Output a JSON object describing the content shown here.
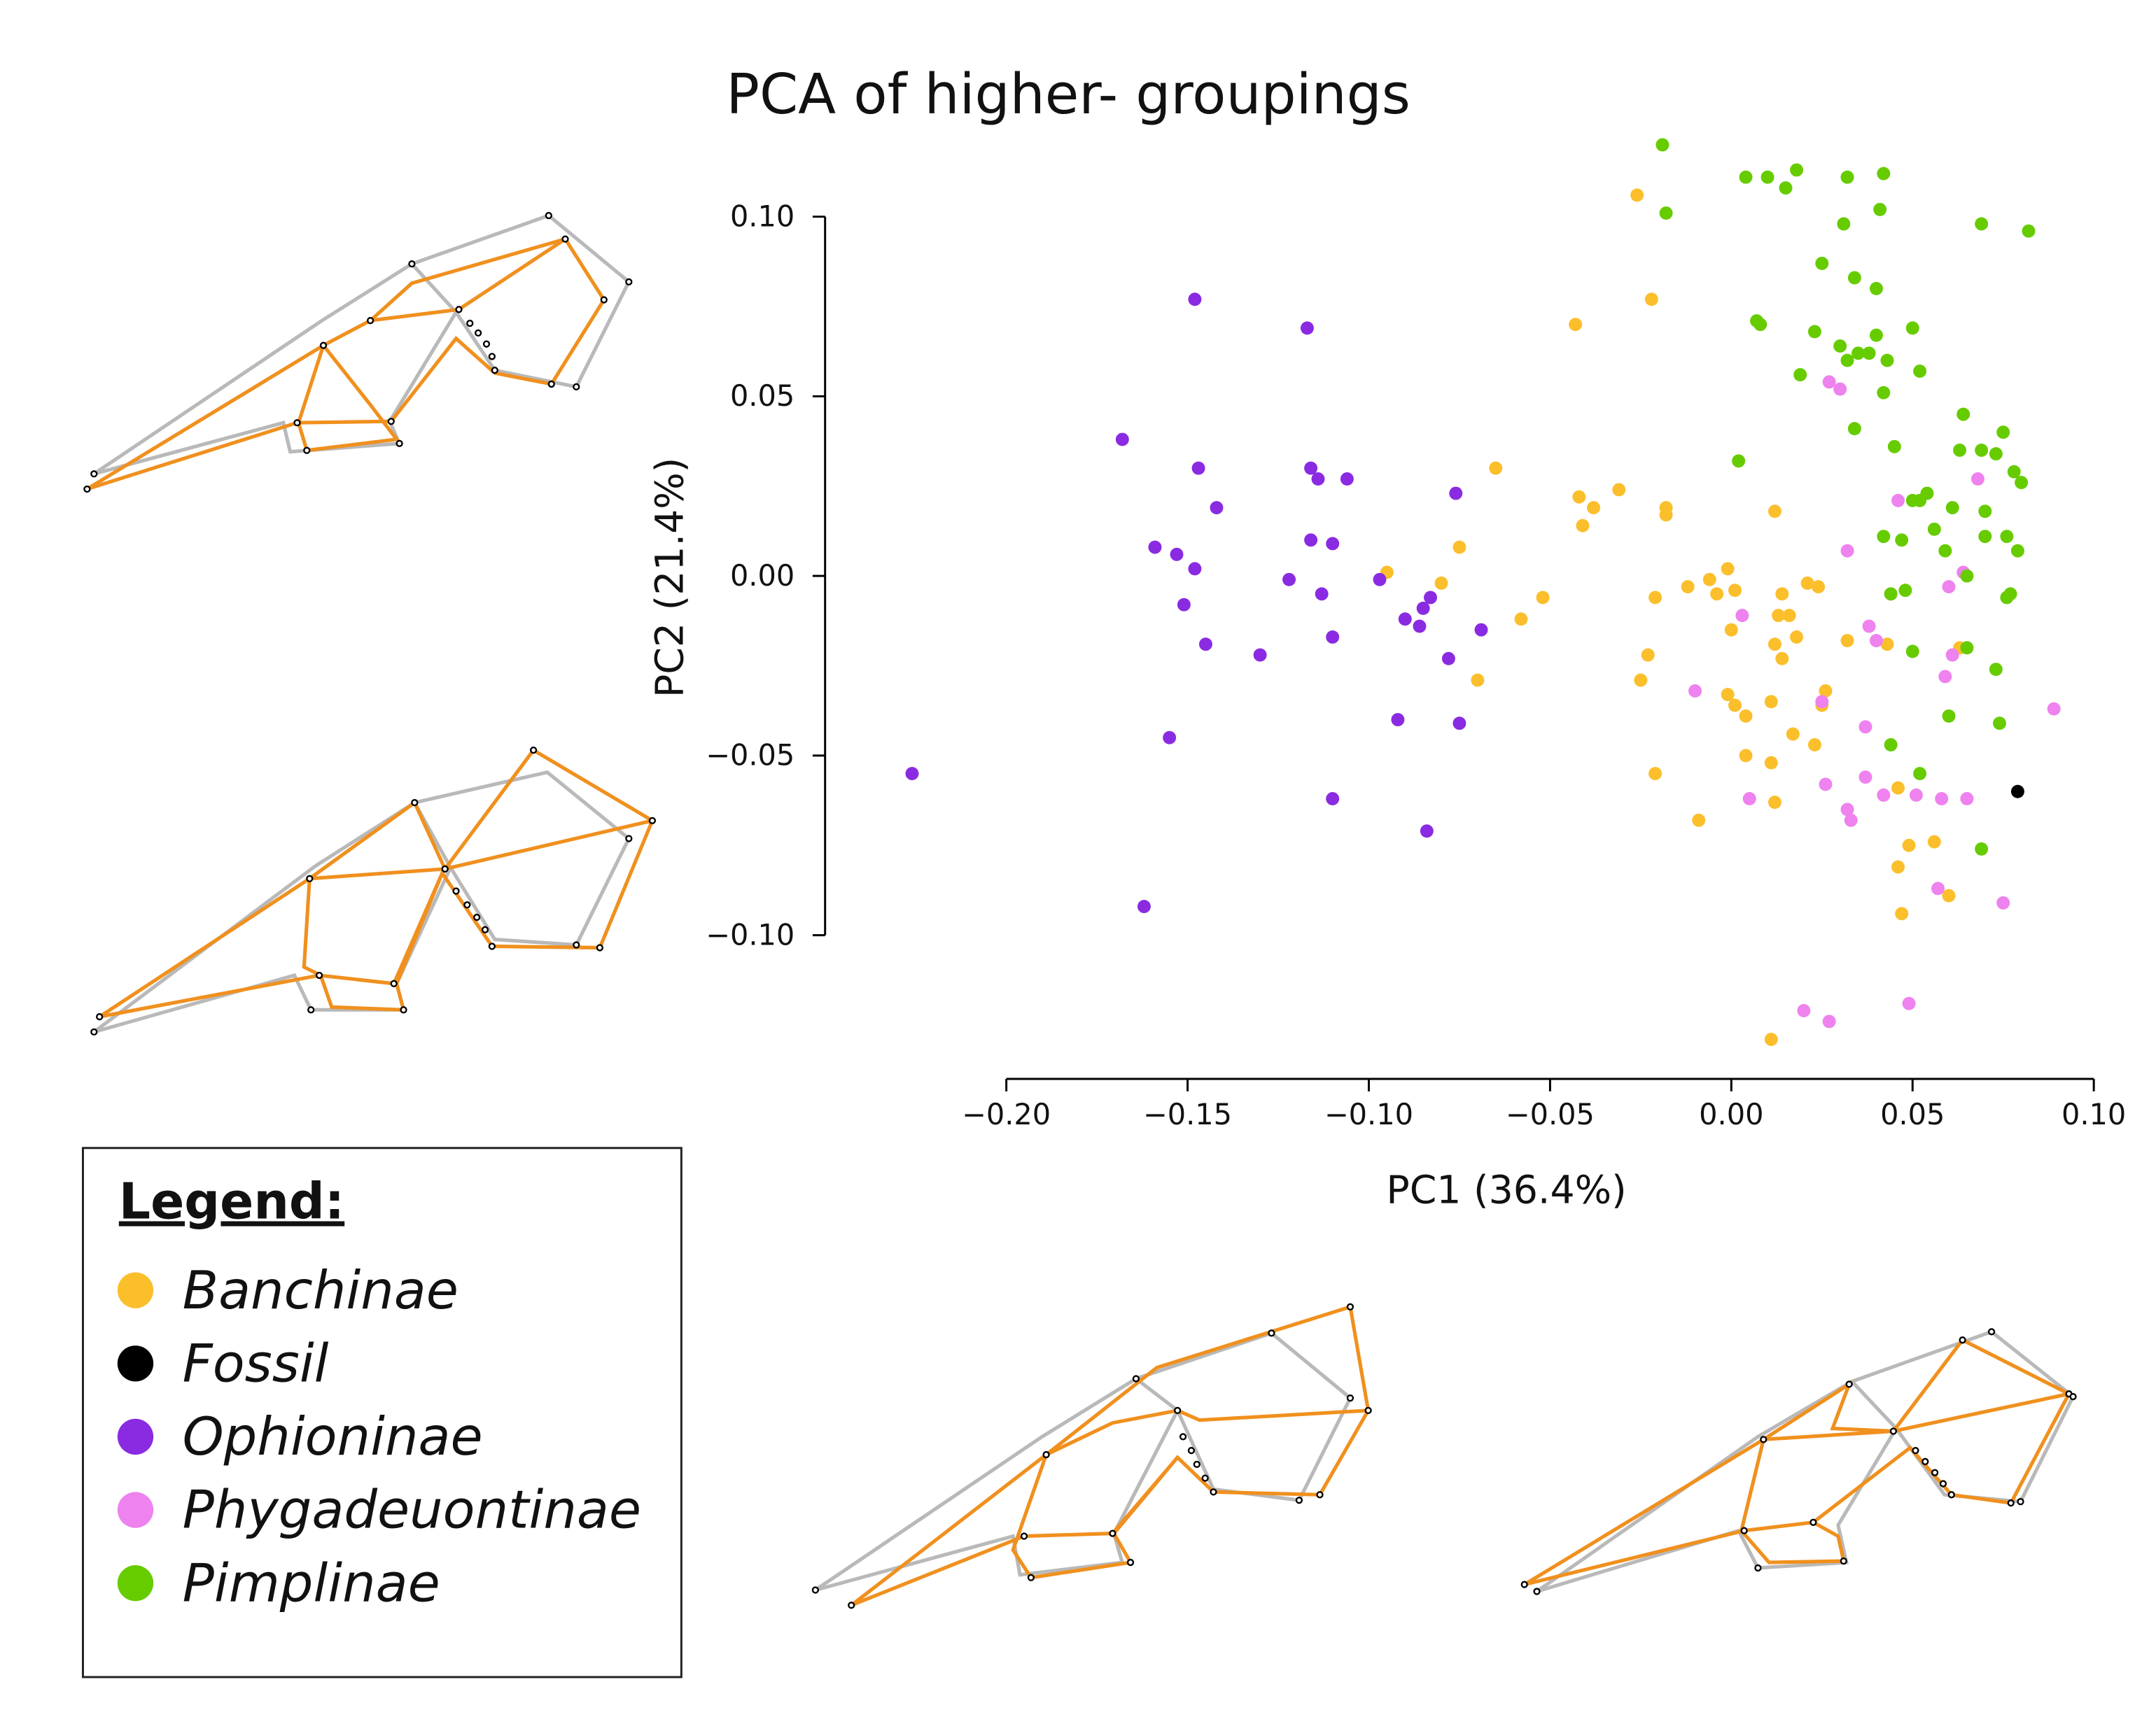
{
  "chart_data": {
    "type": "scatter",
    "title": "PCA of higher- groupings",
    "xlabel": "PC1 (36.4%)",
    "ylabel": "PC2 (21.4%)",
    "legend_title": "Legend:",
    "xlim": [
      -0.25,
      0.1
    ],
    "ylim": [
      -0.14,
      0.13
    ],
    "xticks": [
      {
        "value": -0.2,
        "label": "−0.20"
      },
      {
        "value": -0.15,
        "label": "−0.15"
      },
      {
        "value": -0.1,
        "label": "−0.10"
      },
      {
        "value": -0.05,
        "label": "−0.05"
      },
      {
        "value": 0,
        "label": "0.00"
      },
      {
        "value": 0.05,
        "label": "0.05"
      },
      {
        "value": 0.1,
        "label": "0.10"
      }
    ],
    "yticks": [
      {
        "value": -0.1,
        "label": "−0.10"
      },
      {
        "value": -0.05,
        "label": "−0.05"
      },
      {
        "value": 0,
        "label": "0.00"
      },
      {
        "value": 0.05,
        "label": "0.05"
      },
      {
        "value": 0.1,
        "label": "0.10"
      }
    ],
    "series": [
      {
        "name": "Banchinae",
        "color": "#fbbf2c",
        "x": [
          -0.026,
          -0.022,
          -0.043,
          -0.065,
          -0.042,
          -0.031,
          -0.038,
          -0.041,
          -0.018,
          -0.018,
          0.012,
          -0.075,
          -0.095,
          -0.08,
          -0.052,
          -0.058,
          -0.07,
          -0.021,
          -0.012,
          -0.006,
          -0.001,
          -0.004,
          0.001,
          0.014,
          0.021,
          0.024,
          0.013,
          0.016,
          0.0,
          0.012,
          0.018,
          0.014,
          -0.023,
          -0.025,
          -0.001,
          0.001,
          0.004,
          0.011,
          0.026,
          0.025,
          0.032,
          0.043,
          0.017,
          0.004,
          0.011,
          0.023,
          -0.021,
          -0.009,
          0.012,
          0.046,
          0.049,
          0.056,
          0.046,
          0.06,
          0.047,
          0.011,
          0.063
        ],
        "values": [
          0.106,
          0.077,
          0.07,
          0.03,
          0.022,
          0.024,
          0.019,
          0.014,
          0.019,
          0.017,
          0.018,
          0.008,
          0.001,
          -0.002,
          -0.006,
          -0.012,
          -0.029,
          -0.006,
          -0.003,
          -0.001,
          0.002,
          -0.005,
          -0.004,
          -0.005,
          -0.002,
          -0.003,
          -0.011,
          -0.011,
          -0.015,
          -0.019,
          -0.017,
          -0.023,
          -0.022,
          -0.029,
          -0.033,
          -0.036,
          -0.039,
          -0.035,
          -0.032,
          -0.036,
          -0.018,
          -0.019,
          -0.044,
          -0.05,
          -0.052,
          -0.047,
          -0.055,
          -0.068,
          -0.063,
          -0.059,
          -0.075,
          -0.074,
          -0.081,
          -0.089,
          -0.094,
          -0.129,
          -0.02
        ]
      },
      {
        "name": "Fossil",
        "color": "#000000",
        "x": [
          0.079
        ],
        "values": [
          -0.06
        ]
      },
      {
        "name": "Ophioninae",
        "color": "#8a2be2",
        "x": [
          -0.148,
          -0.117,
          -0.168,
          -0.147,
          -0.116,
          -0.114,
          -0.106,
          -0.076,
          -0.142,
          -0.159,
          -0.153,
          -0.116,
          -0.11,
          -0.148,
          -0.122,
          -0.097,
          -0.113,
          -0.151,
          -0.083,
          -0.085,
          -0.09,
          -0.086,
          -0.145,
          -0.13,
          -0.11,
          -0.069,
          -0.078,
          -0.092,
          -0.075,
          -0.155,
          -0.226,
          -0.11,
          -0.084,
          -0.162
        ],
        "values": [
          0.077,
          0.069,
          0.038,
          0.03,
          0.03,
          0.027,
          0.027,
          0.023,
          0.019,
          0.008,
          0.006,
          0.01,
          0.009,
          0.002,
          -0.001,
          -0.001,
          -0.005,
          -0.008,
          -0.006,
          -0.009,
          -0.012,
          -0.014,
          -0.019,
          -0.022,
          -0.017,
          -0.015,
          -0.023,
          -0.04,
          -0.041,
          -0.045,
          -0.055,
          -0.062,
          -0.071,
          -0.092
        ]
      },
      {
        "name": "Phygadeuontinae",
        "color": "#ee82ee",
        "x": [
          0.027,
          0.03,
          0.046,
          0.068,
          0.032,
          0.064,
          0.003,
          0.038,
          0.06,
          0.044,
          0.04,
          0.061,
          0.059,
          -0.01,
          0.025,
          0.037,
          0.089,
          0.026,
          0.037,
          0.005,
          0.032,
          0.033,
          0.042,
          0.051,
          0.058,
          0.065,
          0.057,
          0.075,
          0.02,
          0.027,
          0.049
        ],
        "values": [
          0.054,
          0.052,
          0.021,
          0.027,
          0.007,
          0.001,
          -0.011,
          -0.014,
          -0.003,
          -0.005,
          -0.018,
          -0.022,
          -0.028,
          -0.032,
          -0.035,
          -0.042,
          -0.037,
          -0.058,
          -0.056,
          -0.062,
          -0.065,
          -0.068,
          -0.061,
          -0.061,
          -0.062,
          -0.062,
          -0.087,
          -0.091,
          -0.121,
          -0.124,
          -0.119
        ]
      },
      {
        "name": "Pimplinae",
        "color": "#66cc00",
        "x": [
          -0.019,
          -0.018,
          0.004,
          0.01,
          0.015,
          0.018,
          0.031,
          0.025,
          0.032,
          0.041,
          0.042,
          0.034,
          0.04,
          0.069,
          0.082,
          0.007,
          0.008,
          0.023,
          0.03,
          0.04,
          0.05,
          0.019,
          0.032,
          0.035,
          0.038,
          0.043,
          0.052,
          0.042,
          0.034,
          0.064,
          0.075,
          0.045,
          0.063,
          0.069,
          0.073,
          0.078,
          0.08,
          0.002,
          0.054,
          0.05,
          0.052,
          0.061,
          0.07,
          0.042,
          0.047,
          0.056,
          0.07,
          0.076,
          0.079,
          0.059,
          0.065,
          0.044,
          0.048,
          0.077,
          0.076,
          0.05,
          0.065,
          0.073,
          0.06,
          0.074,
          0.044,
          0.052,
          0.069
        ],
        "values": [
          0.12,
          0.101,
          0.111,
          0.111,
          0.108,
          0.113,
          0.098,
          0.087,
          0.111,
          0.102,
          0.112,
          0.083,
          0.08,
          0.098,
          0.096,
          0.071,
          0.07,
          0.068,
          0.064,
          0.067,
          0.069,
          0.056,
          0.06,
          0.062,
          0.062,
          0.06,
          0.057,
          0.051,
          0.041,
          0.045,
          0.04,
          0.036,
          0.035,
          0.035,
          0.034,
          0.029,
          0.026,
          0.032,
          0.023,
          0.021,
          0.021,
          0.019,
          0.018,
          0.011,
          0.01,
          0.013,
          0.011,
          0.011,
          0.007,
          0.007,
          0.0,
          -0.005,
          -0.004,
          -0.005,
          -0.006,
          -0.021,
          -0.02,
          -0.026,
          -0.039,
          -0.041,
          -0.047,
          -0.055,
          -0.076
        ]
      }
    ]
  }
}
